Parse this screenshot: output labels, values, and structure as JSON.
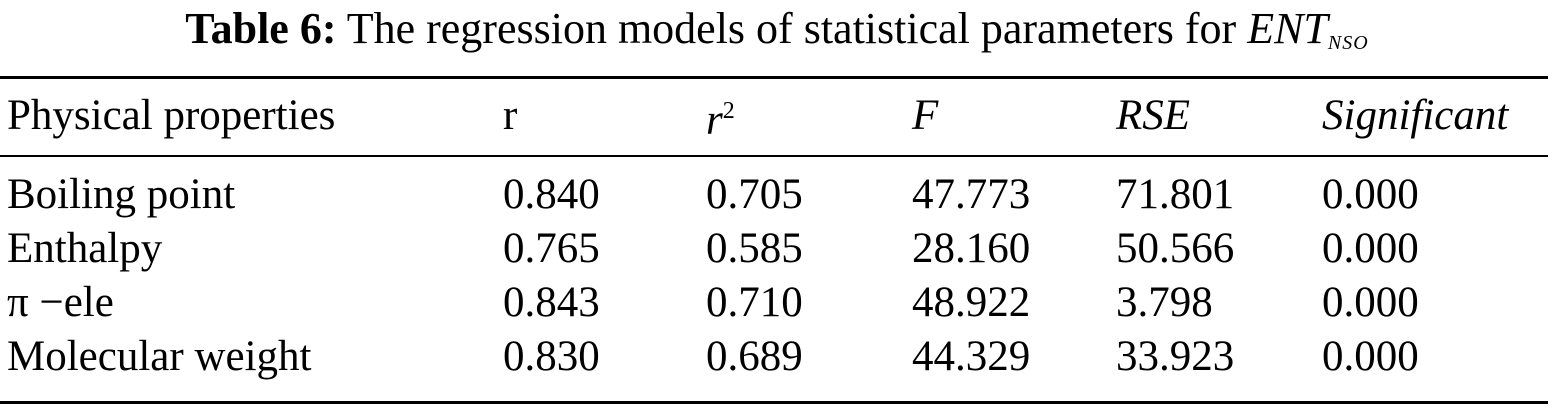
{
  "caption": {
    "label": "Table 6:",
    "text": "The regression models of statistical parameters for",
    "symbol": "ENT",
    "subscript": "NSO"
  },
  "table": {
    "headers": {
      "property": "Physical properties",
      "r": "r",
      "r2_base": "r",
      "r2_exp": "2",
      "F": "F",
      "RSE": "RSE",
      "significant": "Significant"
    },
    "rows": [
      {
        "property": "Boiling point",
        "r": "0.840",
        "r2": "0.705",
        "F": "47.773",
        "RSE": "71.801",
        "sig": "0.000"
      },
      {
        "property": "Enthalpy",
        "r": "0.765",
        "r2": "0.585",
        "F": "28.160",
        "RSE": "50.566",
        "sig": "0.000"
      },
      {
        "property": "π −ele",
        "r": "0.843",
        "r2": "0.710",
        "F": "48.922",
        "RSE": "3.798",
        "sig": "0.000"
      },
      {
        "property": "Molecular weight",
        "r": "0.830",
        "r2": "0.689",
        "F": "44.329",
        "RSE": "33.923",
        "sig": "0.000"
      }
    ]
  }
}
